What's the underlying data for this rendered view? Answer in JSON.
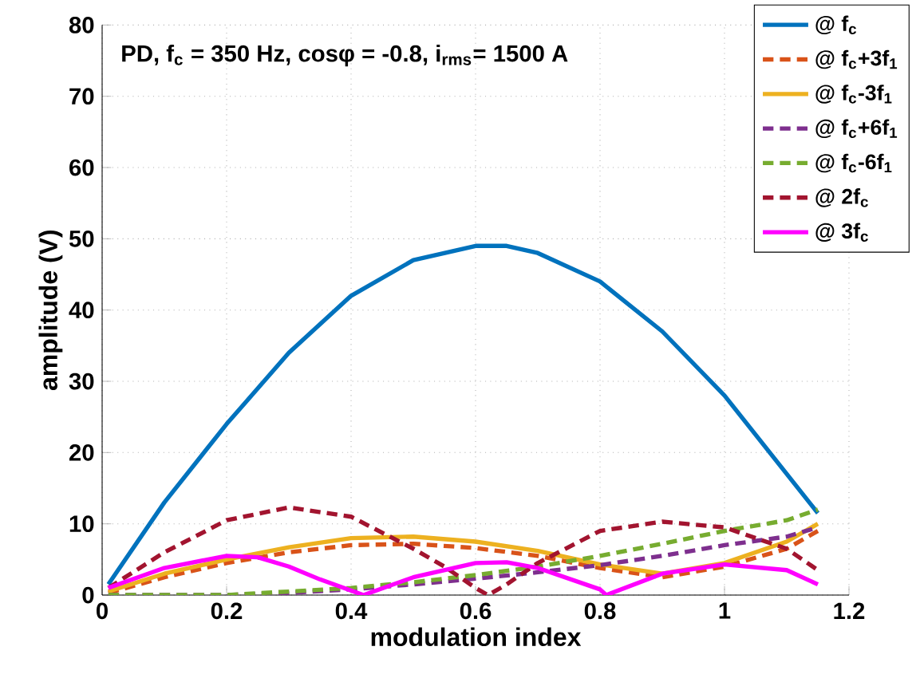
{
  "chart_data": {
    "type": "line",
    "title": "PD, f$_{c}$ = 350 Hz, cosφ = -0.8, i$_{rms}$= 1500 A",
    "xlabel": "modulation index",
    "ylabel": "amplitude (V)",
    "xlim": [
      0,
      1.2
    ],
    "ylim": [
      0,
      80
    ],
    "xticks": [
      0,
      0.2,
      0.4,
      0.6,
      0.8,
      1,
      1.2
    ],
    "yticks": [
      0,
      10,
      20,
      30,
      40,
      50,
      60,
      70,
      80
    ],
    "grid": true,
    "legend": "top right",
    "marker": "none",
    "series": [
      {
        "name": "@ f$_{c}$",
        "color": "#0072bd",
        "line_style": "solid",
        "x": [
          0.01,
          0.1,
          0.2,
          0.3,
          0.4,
          0.5,
          0.6,
          0.65,
          0.7,
          0.8,
          0.9,
          1.0,
          1.1,
          1.15
        ],
        "values": [
          1.5,
          13,
          24,
          34,
          42,
          47,
          49,
          49,
          48,
          44,
          37,
          28,
          17,
          11.5
        ]
      },
      {
        "name": "@ f$_{c}$+3f$_{1}$",
        "color": "#d95319",
        "line_style": "dashed",
        "x": [
          0.01,
          0.1,
          0.2,
          0.3,
          0.4,
          0.5,
          0.6,
          0.7,
          0.8,
          0.9,
          1.0,
          1.1,
          1.15
        ],
        "values": [
          0.3,
          2.5,
          4.5,
          6,
          7,
          7.2,
          6.6,
          5.5,
          3.8,
          2.5,
          4,
          6.5,
          9
        ]
      },
      {
        "name": "@ f$_{c}$-3f$_{1}$",
        "color": "#edb120",
        "line_style": "solid",
        "x": [
          0.01,
          0.1,
          0.2,
          0.3,
          0.4,
          0.5,
          0.6,
          0.7,
          0.8,
          0.9,
          1.0,
          1.1,
          1.15
        ],
        "values": [
          0.5,
          3,
          5,
          6.7,
          8,
          8.2,
          7.5,
          6.2,
          4.3,
          3,
          4.5,
          7.5,
          10
        ]
      },
      {
        "name": "@ f$_{c}$+6f$_{1}$",
        "color": "#7e2f8e",
        "line_style": "dashed",
        "x": [
          0.01,
          0.2,
          0.3,
          0.4,
          0.5,
          0.6,
          0.7,
          0.8,
          0.9,
          1.0,
          1.1,
          1.15
        ],
        "values": [
          0,
          0,
          0.3,
          0.8,
          1.5,
          2.3,
          3.2,
          4.2,
          5.5,
          7,
          8.2,
          9.5
        ]
      },
      {
        "name": "@ f$_{c}$-6f$_{1}$",
        "color": "#77ac30",
        "line_style": "dashed",
        "x": [
          0.01,
          0.2,
          0.3,
          0.4,
          0.5,
          0.6,
          0.7,
          0.8,
          0.9,
          1.0,
          1.1,
          1.15
        ],
        "values": [
          0,
          0,
          0.5,
          1,
          1.8,
          2.8,
          4,
          5.5,
          7.2,
          9,
          10.5,
          12
        ]
      },
      {
        "name": "@ 2f$_{c}$",
        "color": "#a2142f",
        "line_style": "dashed",
        "x": [
          0.01,
          0.1,
          0.2,
          0.3,
          0.4,
          0.5,
          0.55,
          0.6,
          0.62,
          0.65,
          0.7,
          0.8,
          0.9,
          1.0,
          1.1,
          1.15
        ],
        "values": [
          1,
          6,
          10.5,
          12.3,
          11,
          6.5,
          4,
          1,
          0,
          1.5,
          4.5,
          9,
          10.3,
          9.5,
          6.5,
          3.5
        ]
      },
      {
        "name": "@ 3f$_{c}$",
        "color": "#ff00ff",
        "line_style": "solid",
        "x": [
          0.01,
          0.1,
          0.2,
          0.25,
          0.3,
          0.35,
          0.42,
          0.5,
          0.6,
          0.65,
          0.7,
          0.8,
          0.81,
          0.9,
          1.0,
          1.1,
          1.15
        ],
        "values": [
          1,
          3.8,
          5.5,
          5.3,
          4,
          2.2,
          0,
          2.5,
          4.5,
          4.6,
          3.8,
          0.8,
          0,
          3,
          4.3,
          3.5,
          1.5
        ]
      }
    ]
  }
}
